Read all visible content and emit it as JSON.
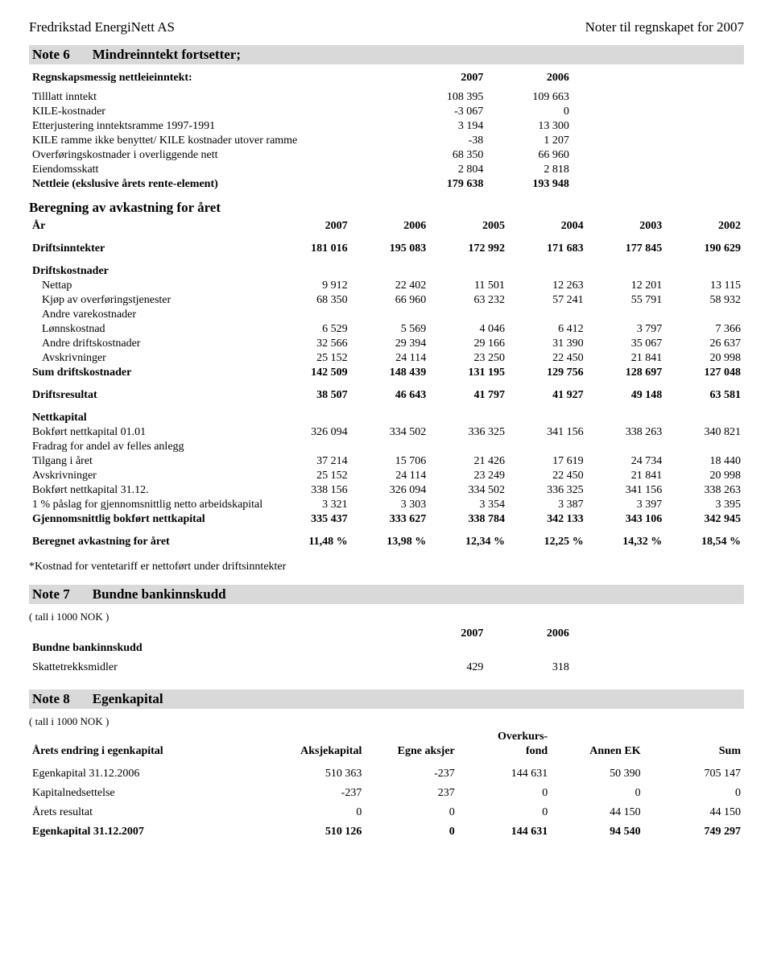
{
  "header": {
    "company": "Fredrikstad EnergiNett AS",
    "right": "Noter til regnskapet for  2007"
  },
  "note6": {
    "no": "Note 6",
    "title": "Mindreinntekt fortsetter;",
    "sub1_title": "Regnskapsmessig nettleieinntekt:",
    "years": [
      "2007",
      "2006"
    ],
    "rows": [
      {
        "label": "Tilllatt inntekt",
        "v1": "108 395",
        "v2": "109 663",
        "bold": false
      },
      {
        "label": "KILE-kostnader",
        "v1": "-3 067",
        "v2": "0",
        "bold": false
      },
      {
        "label": "Etterjustering inntektsramme 1997-1991",
        "v1": "3 194",
        "v2": "13 300",
        "bold": false
      },
      {
        "label": "KILE ramme ikke benyttet/ KILE kostnader utover ramme",
        "v1": "-38",
        "v2": "1 207",
        "bold": false
      },
      {
        "label": "Overføringskostnader i overliggende nett",
        "v1": "68 350",
        "v2": "66 960",
        "bold": false
      },
      {
        "label": "Eiendomsskatt",
        "v1": "2 804",
        "v2": "2 818",
        "bold": false
      },
      {
        "label": "Nettleie (ekslusive årets rente-element)",
        "v1": "179 638",
        "v2": "193 948",
        "bold": true
      }
    ],
    "calc_title": "Beregning av avkastning for året",
    "year_label": "År",
    "year_cols": [
      "2007",
      "2006",
      "2005",
      "2004",
      "2003",
      "2002"
    ],
    "driftsinntekter": {
      "label": "Driftsinntekter",
      "v": [
        "181 016",
        "195 083",
        "172 992",
        "171 683",
        "177 845",
        "190 629"
      ]
    },
    "driftskostnader_label": "Driftskostnader",
    "kost_rows": [
      {
        "label": "Nettap",
        "v": [
          "9 912",
          "22 402",
          "11 501",
          "12 263",
          "12 201",
          "13 115"
        ],
        "indent": true
      },
      {
        "label": "Kjøp av overføringstjenester",
        "v": [
          "68 350",
          "66 960",
          "63 232",
          "57 241",
          "55 791",
          "58 932"
        ],
        "indent": true
      },
      {
        "label": "Andre varekostnader",
        "v": [
          "",
          "",
          "",
          "",
          "",
          ""
        ],
        "indent": true
      },
      {
        "label": "Lønnskostnad",
        "v": [
          "6 529",
          "5 569",
          "4 046",
          "6 412",
          "3 797",
          "7 366"
        ],
        "indent": true
      },
      {
        "label": "Andre driftskostnader",
        "v": [
          "32 566",
          "29 394",
          "29 166",
          "31 390",
          "35 067",
          "26 637"
        ],
        "indent": true
      },
      {
        "label": "Avskrivninger",
        "v": [
          "25 152",
          "24 114",
          "23 250",
          "22 450",
          "21 841",
          "20 998"
        ],
        "indent": true
      }
    ],
    "sum_driftskost": {
      "label": "Sum driftskostnader",
      "v": [
        "142 509",
        "148 439",
        "131 195",
        "129 756",
        "128 697",
        "127 048"
      ]
    },
    "driftsresultat": {
      "label": "Driftsresultat",
      "v": [
        "38 507",
        "46 643",
        "41 797",
        "41 927",
        "49 148",
        "63 581"
      ]
    },
    "nettkapital_label": "Nettkapital",
    "nettkap_rows": [
      {
        "label": "Bokført nettkapital  01.01",
        "v": [
          "326 094",
          "334 502",
          "336 325",
          "341 156",
          "338 263",
          "340 821"
        ]
      },
      {
        "label": "Fradrag for andel av felles anlegg",
        "v": [
          "",
          "",
          "",
          "",
          "",
          ""
        ]
      },
      {
        "label": "Tilgang i året",
        "v": [
          "37 214",
          "15 706",
          "21 426",
          "17 619",
          "24 734",
          "18 440"
        ]
      },
      {
        "label": "Avskrivninger",
        "v": [
          "25 152",
          "24 114",
          "23 249",
          "22 450",
          "21 841",
          "20 998"
        ]
      },
      {
        "label": "Bokført nettkapital  31.12.",
        "v": [
          "338 156",
          "326 094",
          "334 502",
          "336 325",
          "341 156",
          "338 263"
        ]
      },
      {
        "label": "1 % påslag for gjennomsnittlig netto arbeidskapital",
        "v": [
          "3 321",
          "3 303",
          "3 354",
          "3 387",
          "3 397",
          "3 395"
        ]
      },
      {
        "label": "Gjennomsnittlig bokført nettkapital",
        "v": [
          "335 437",
          "333 627",
          "338 784",
          "342 133",
          "343 106",
          "342 945"
        ],
        "bold": true
      }
    ],
    "beregnet": {
      "label": "Beregnet avkastning for året",
      "v": [
        "11,48 %",
        "13,98 %",
        "12,34 %",
        "12,25 %",
        "14,32 %",
        "18,54 %"
      ]
    },
    "footnote": "*Kostnad for ventetariff er nettoført under driftsinntekter"
  },
  "note7": {
    "no": "Note 7",
    "title": "Bundne bankinnskudd",
    "tall_i": "( tall i 1000 NOK )",
    "sub": "Bundne bankinnskudd",
    "years": [
      "2007",
      "2006"
    ],
    "row": {
      "label": "Skattetrekksmidler",
      "v1": "429",
      "v2": "318"
    }
  },
  "note8": {
    "no": "Note 8",
    "title": "Egenkapital",
    "tall_i": "( tall i 1000 NOK )",
    "rowhdr": "Årets endring i egenkapital",
    "cols": [
      "Aksjekapital",
      "Egne aksjer",
      "Overkurs-\nfond",
      "Annen EK",
      "Sum"
    ],
    "col_plain": [
      "Aksjekapital",
      "Egne aksjer",
      "fond",
      "Annen EK",
      "Sum"
    ],
    "col_top": [
      "",
      "",
      "Overkurs-",
      "",
      ""
    ],
    "rows": [
      {
        "label": "Egenkapital 31.12.2006",
        "v": [
          "510 363",
          "-237",
          "144 631",
          "50 390",
          "705 147"
        ]
      },
      {
        "label": "Kapitalnedsettelse",
        "v": [
          "-237",
          "237",
          "0",
          "0",
          "0"
        ]
      },
      {
        "label": "Årets resultat",
        "v": [
          "0",
          "0",
          "0",
          "44 150",
          "44 150"
        ]
      },
      {
        "label": "Egenkapital 31.12.2007",
        "v": [
          "510 126",
          "0",
          "144 631",
          "94 540",
          "749 297"
        ],
        "bold": true
      }
    ]
  }
}
